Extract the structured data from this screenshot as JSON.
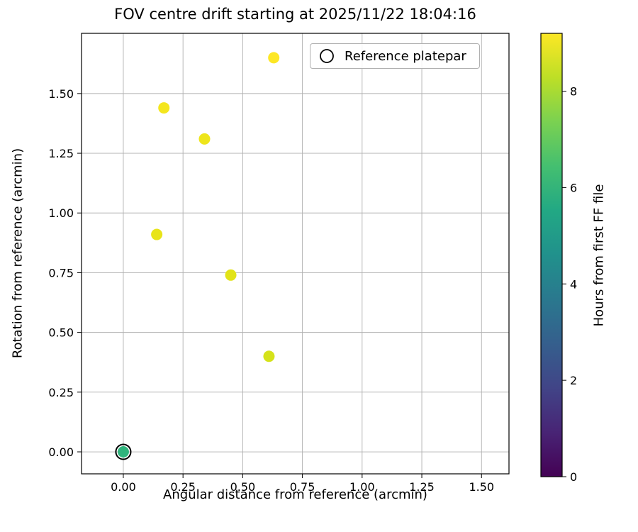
{
  "chart_data": {
    "type": "scatter",
    "title": "FOV centre drift starting at 2025/11/22 18:04:16",
    "xlabel": "Angular distance from reference (arcmin)",
    "ylabel": "Rotation from reference (arcmin)",
    "xlim": [
      -0.175,
      1.615
    ],
    "ylim": [
      -0.092,
      1.752
    ],
    "grid": true,
    "grid_color": "#b0b0b0",
    "spine_color": "#000000",
    "xticks": {
      "values": [
        0,
        0.25,
        0.5,
        0.75,
        1.0,
        1.25,
        1.5
      ],
      "labels": [
        "0.00",
        "0.25",
        "0.50",
        "0.75",
        "1.00",
        "1.25",
        "1.50"
      ]
    },
    "yticks": {
      "values": [
        0,
        0.25,
        0.5,
        0.75,
        1.0,
        1.25,
        1.5
      ],
      "labels": [
        "0.00",
        "0.25",
        "0.50",
        "0.75",
        "1.00",
        "1.25",
        "1.50"
      ]
    },
    "points": [
      {
        "x": 0.63,
        "y": 1.65,
        "hours": 9.2,
        "color": "#fde725"
      },
      {
        "x": 0.17,
        "y": 1.44,
        "hours": 9.1,
        "color": "#f4e61e"
      },
      {
        "x": 0.34,
        "y": 1.31,
        "hours": 9.0,
        "color": "#eee51b"
      },
      {
        "x": 0.14,
        "y": 0.91,
        "hours": 8.9,
        "color": "#e8e419"
      },
      {
        "x": 0.45,
        "y": 0.74,
        "hours": 8.8,
        "color": "#e2e318"
      },
      {
        "x": 0.61,
        "y": 0.4,
        "hours": 8.6,
        "color": "#d5e21a"
      },
      {
        "x": 0.0,
        "y": 0.0,
        "hours": 6.0,
        "color": "#2fb47c"
      }
    ],
    "reference_point": {
      "x": 0.0,
      "y": 0.0
    },
    "legend": {
      "label": "Reference platepar"
    },
    "colorbar": {
      "label": "Hours from first FF file",
      "min": 0,
      "max": 9.2,
      "ticks": {
        "values": [
          0,
          2,
          4,
          6,
          8
        ],
        "labels": [
          "0",
          "2",
          "4",
          "6",
          "8"
        ]
      },
      "gradient": [
        [
          "0%",
          "#440154"
        ],
        [
          "10%",
          "#482475"
        ],
        [
          "20%",
          "#414487"
        ],
        [
          "30%",
          "#355f8d"
        ],
        [
          "40%",
          "#2a788e"
        ],
        [
          "50%",
          "#21918c"
        ],
        [
          "60%",
          "#22a884"
        ],
        [
          "70%",
          "#44bf70"
        ],
        [
          "80%",
          "#7ad151"
        ],
        [
          "90%",
          "#bddf26"
        ],
        [
          "100%",
          "#fde725"
        ]
      ]
    }
  }
}
